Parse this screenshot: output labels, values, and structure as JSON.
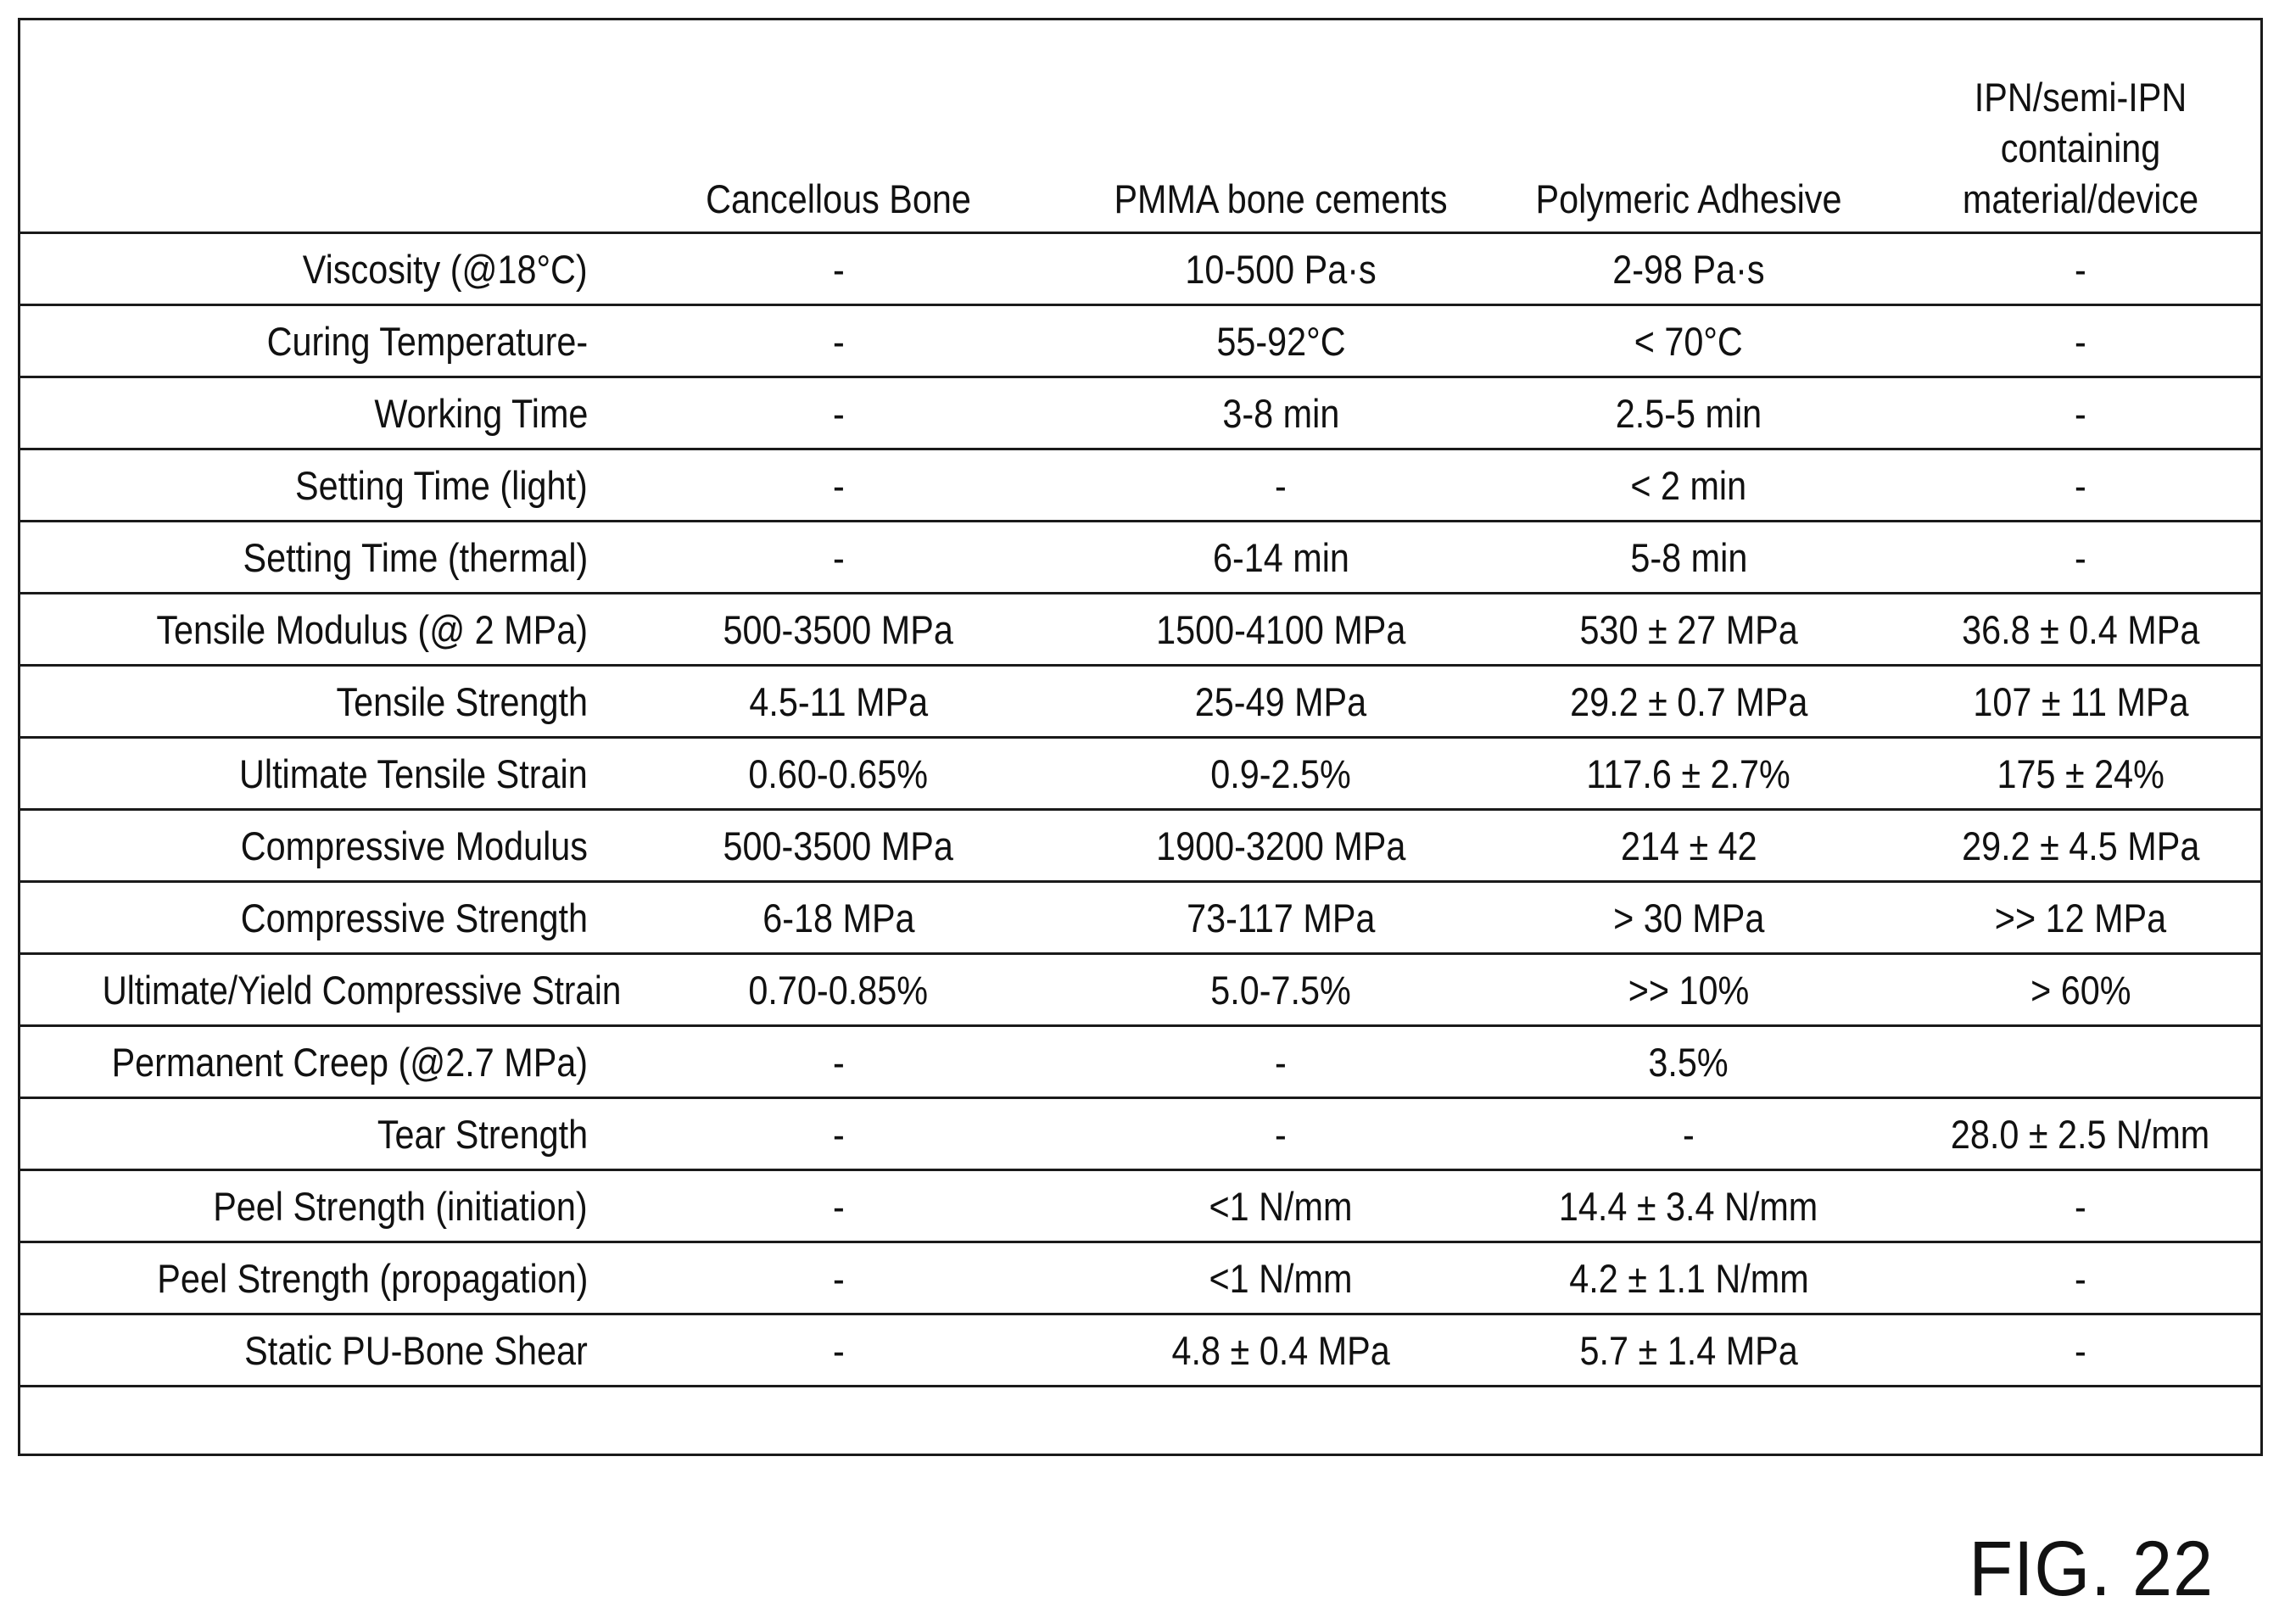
{
  "table": {
    "headers": [
      "",
      "Cancellous Bone",
      "PMMA bone cements",
      "Polymeric Adhesive",
      "IPN/semi-IPN containing material/device"
    ],
    "header_lines": {
      "col4": [
        "IPN/semi-IPN",
        "containing",
        "material/device"
      ]
    },
    "rows": [
      {
        "label": "Viscosity (@18°C)",
        "values": [
          "-",
          "10-500 Pa·s",
          "2-98 Pa·s",
          "-"
        ]
      },
      {
        "label": "Curing Temperature-",
        "values": [
          "-",
          "55-92°C",
          "< 70°C",
          "-"
        ]
      },
      {
        "label": "Working Time",
        "values": [
          "-",
          "3-8 min",
          "2.5-5 min",
          "-"
        ]
      },
      {
        "label": "Setting Time (light)",
        "values": [
          "-",
          "-",
          "< 2 min",
          "-"
        ]
      },
      {
        "label": "Setting Time (thermal)",
        "values": [
          "-",
          "6-14 min",
          "5-8 min",
          "-"
        ]
      },
      {
        "label": "Tensile Modulus (@ 2 MPa)",
        "values": [
          "500-3500 MPa",
          "1500-4100 MPa",
          "530 ± 27 MPa",
          "36.8 ± 0.4 MPa"
        ]
      },
      {
        "label": "Tensile Strength",
        "values": [
          "4.5-11 MPa",
          "25-49 MPa",
          "29.2 ± 0.7 MPa",
          "107 ± 11 MPa"
        ]
      },
      {
        "label": "Ultimate Tensile Strain",
        "values": [
          "0.60-0.65%",
          "0.9-2.5%",
          "117.6 ± 2.7%",
          "175 ± 24%"
        ]
      },
      {
        "label": "Compressive Modulus",
        "values": [
          "500-3500 MPa",
          "1900-3200 MPa",
          "214 ± 42",
          "29.2 ± 4.5 MPa"
        ]
      },
      {
        "label": "Compressive Strength",
        "values": [
          "6-18 MPa",
          "73-117 MPa",
          "> 30 MPa",
          ">> 12 MPa"
        ]
      },
      {
        "label": "Ultimate/Yield Compressive Strain",
        "values": [
          "0.70-0.85%",
          "5.0-7.5%",
          ">> 10%",
          "> 60%"
        ]
      },
      {
        "label": "Permanent Creep (@2.7 MPa)",
        "values": [
          "-",
          "-",
          "3.5%",
          ""
        ]
      },
      {
        "label": "Tear Strength",
        "values": [
          "-",
          "-",
          "-",
          "28.0 ± 2.5 N/mm"
        ]
      },
      {
        "label": "Peel Strength (initiation)",
        "values": [
          "-",
          "<1 N/mm",
          "14.4 ± 3.4 N/mm",
          "-"
        ]
      },
      {
        "label": "Peel Strength (propagation)",
        "values": [
          "-",
          "<1 N/mm",
          "4.2 ± 1.1 N/mm",
          "-"
        ]
      },
      {
        "label": "Static PU-Bone Shear",
        "values": [
          "-",
          "4.8 ± 0.4 MPa",
          "5.7 ± 1.4 MPa",
          "-"
        ]
      }
    ]
  },
  "figure": {
    "label": "FIG. 22"
  }
}
